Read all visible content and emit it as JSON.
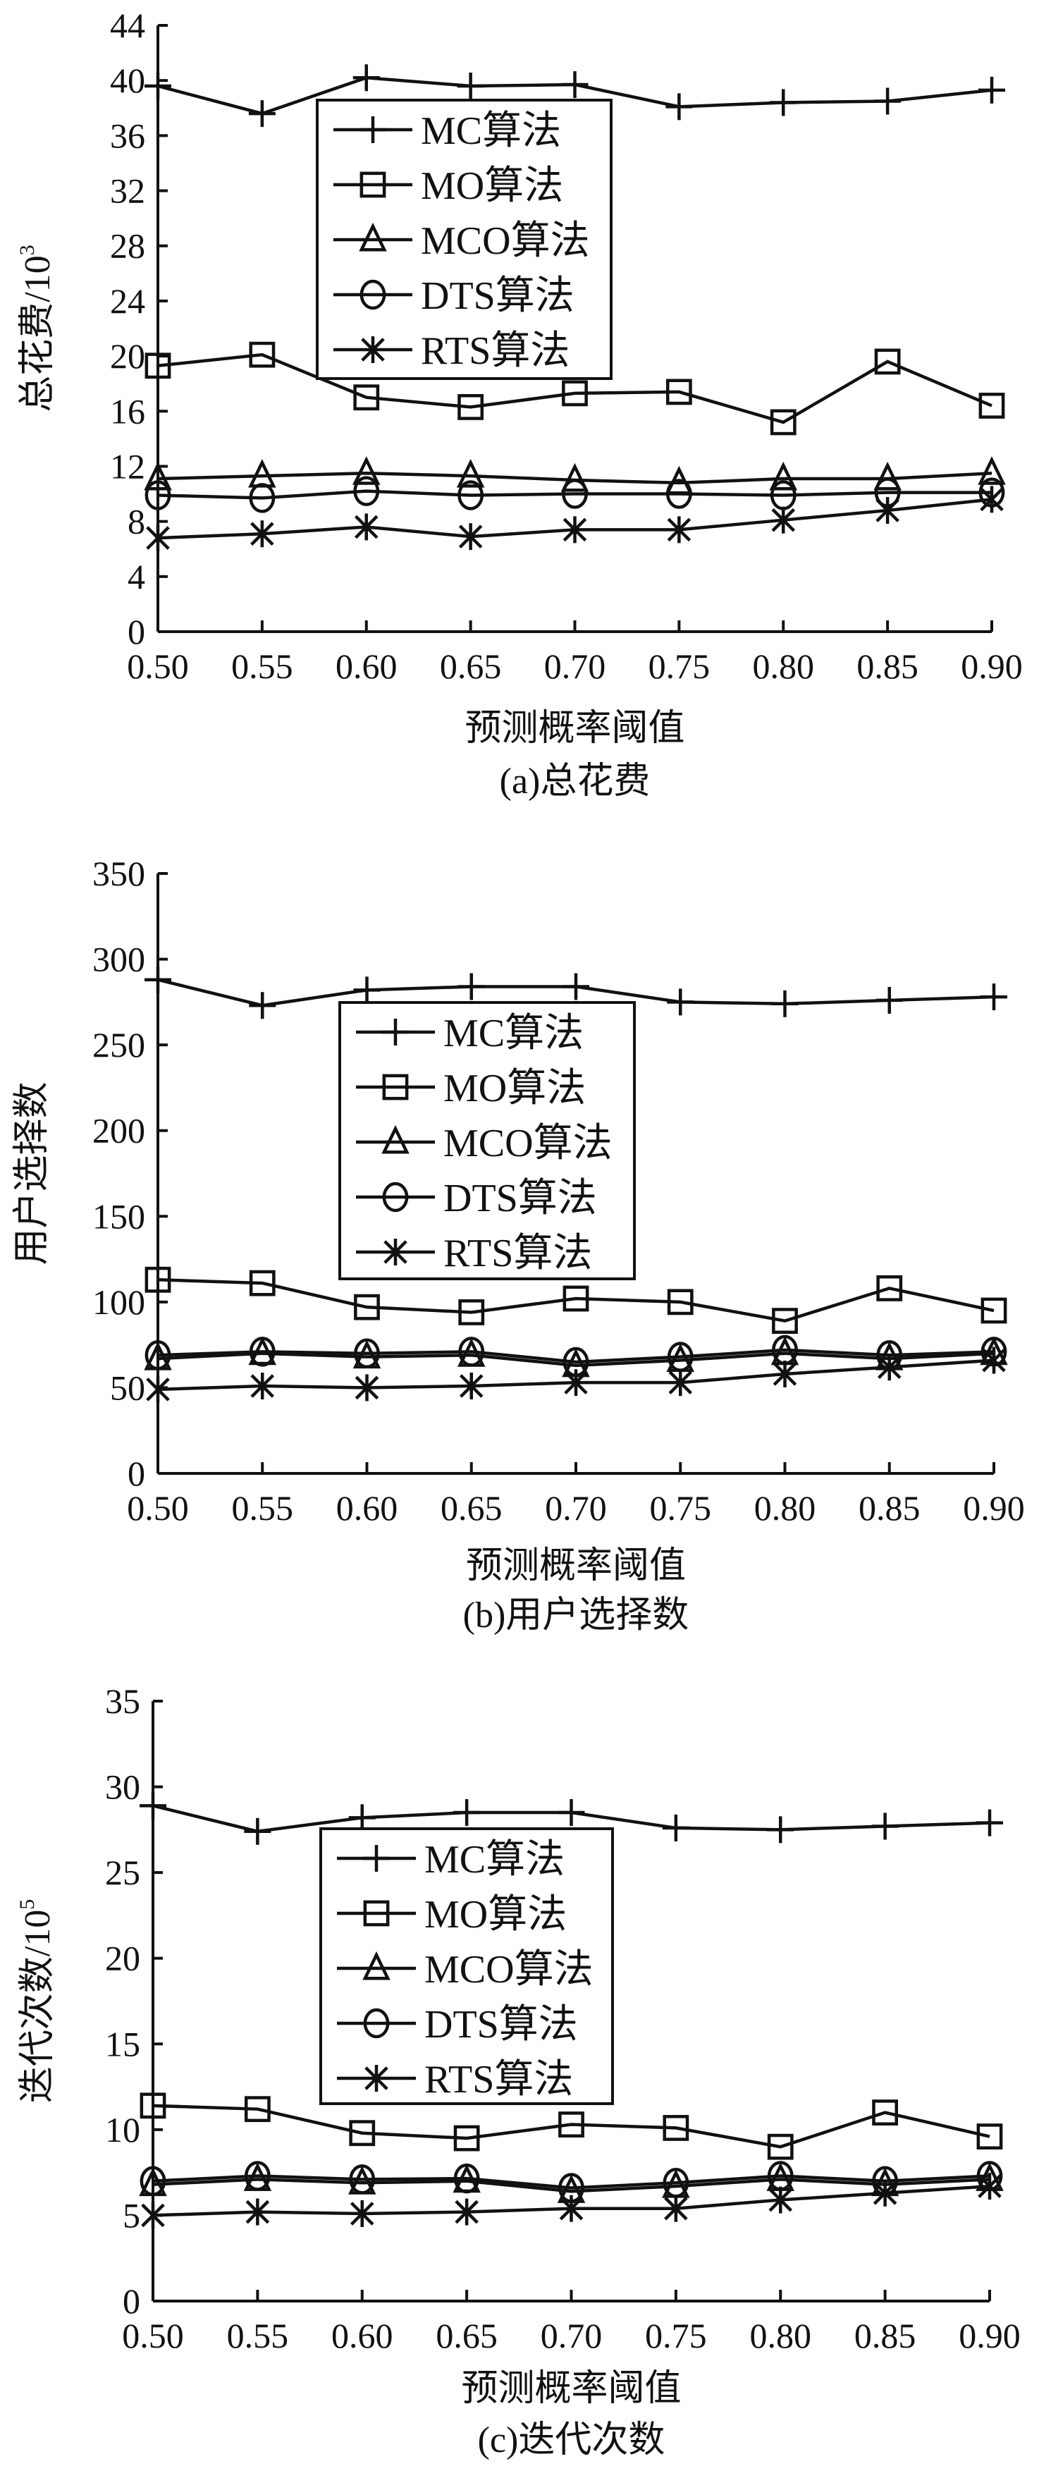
{
  "chart_data": [
    {
      "type": "line",
      "title": "(a)总花费",
      "xlabel": "预测概率阈值",
      "ylabel": "总花费/10",
      "ylabel_exponent": "3",
      "x": [
        0.5,
        0.55,
        0.6,
        0.65,
        0.7,
        0.75,
        0.8,
        0.85,
        0.9
      ],
      "x_tick_labels": [
        "0.50",
        "0.55",
        "0.60",
        "0.65",
        "0.70",
        "0.75",
        "0.80",
        "0.85",
        "0.90"
      ],
      "ylim": [
        0,
        44
      ],
      "y_ticks": [
        0,
        4,
        8,
        12,
        16,
        20,
        24,
        28,
        32,
        36,
        40,
        44
      ],
      "y_tick_labels": [
        "0",
        "4",
        "8",
        "12",
        "16",
        "20",
        "24",
        "28",
        "32",
        "36",
        "40",
        "44"
      ],
      "legend_position": "top-center",
      "series": [
        {
          "name": "MC算法",
          "marker": "plus",
          "values": [
            39.6,
            37.6,
            40.2,
            39.6,
            39.7,
            38.1,
            38.4,
            38.5,
            39.3
          ]
        },
        {
          "name": "MO算法",
          "marker": "square",
          "values": [
            19.3,
            20.1,
            17.0,
            16.3,
            17.3,
            17.4,
            15.2,
            19.6,
            16.4
          ]
        },
        {
          "name": "MCO算法",
          "marker": "triangle",
          "values": [
            11.1,
            11.3,
            11.5,
            11.3,
            11.0,
            10.8,
            11.1,
            11.1,
            11.5
          ]
        },
        {
          "name": "DTS算法",
          "marker": "circle",
          "values": [
            9.9,
            9.7,
            10.2,
            9.9,
            10.0,
            10.0,
            9.9,
            10.1,
            10.1
          ]
        },
        {
          "name": "RTS算法",
          "marker": "asterisk",
          "values": [
            6.8,
            7.1,
            7.6,
            6.9,
            7.4,
            7.4,
            8.1,
            8.8,
            9.6
          ]
        }
      ]
    },
    {
      "type": "line",
      "title": "(b)用户选择数",
      "xlabel": "预测概率阈值",
      "ylabel": "用户选择数",
      "ylabel_exponent": "",
      "x": [
        0.5,
        0.55,
        0.6,
        0.65,
        0.7,
        0.75,
        0.8,
        0.85,
        0.9
      ],
      "x_tick_labels": [
        "0.50",
        "0.55",
        "0.60",
        "0.65",
        "0.70",
        "0.75",
        "0.80",
        "0.85",
        "0.90"
      ],
      "ylim": [
        0,
        350
      ],
      "y_ticks": [
        0,
        50,
        100,
        150,
        200,
        250,
        300,
        350
      ],
      "y_tick_labels": [
        "0",
        "50",
        "100",
        "150",
        "200",
        "250",
        "300",
        "350"
      ],
      "legend_position": "center",
      "series": [
        {
          "name": "MC算法",
          "marker": "plus",
          "values": [
            288,
            273,
            282,
            284,
            284,
            275,
            274,
            276,
            278
          ]
        },
        {
          "name": "MO算法",
          "marker": "square",
          "values": [
            113,
            111,
            97,
            94,
            102,
            100,
            89,
            108,
            95
          ]
        },
        {
          "name": "MCO算法",
          "marker": "triangle",
          "values": [
            67,
            70,
            68,
            69,
            63,
            66,
            70,
            67,
            70
          ]
        },
        {
          "name": "DTS算法",
          "marker": "circle",
          "values": [
            69,
            71,
            70,
            71,
            65,
            68,
            72,
            69,
            71
          ]
        },
        {
          "name": "RTS算法",
          "marker": "asterisk",
          "values": [
            49,
            51,
            50,
            51,
            53,
            53,
            58,
            62,
            66
          ]
        }
      ]
    },
    {
      "type": "line",
      "title": "(c)迭代次数",
      "xlabel": "预测概率阈值",
      "ylabel": "迭代次数/10",
      "ylabel_exponent": "5",
      "x": [
        0.5,
        0.55,
        0.6,
        0.65,
        0.7,
        0.75,
        0.8,
        0.85,
        0.9
      ],
      "x_tick_labels": [
        "0.50",
        "0.55",
        "0.60",
        "0.65",
        "0.70",
        "0.75",
        "0.80",
        "0.85",
        "0.90"
      ],
      "ylim": [
        0,
        35
      ],
      "y_ticks": [
        0,
        5,
        10,
        15,
        20,
        25,
        30,
        35
      ],
      "y_tick_labels": [
        "0",
        "5",
        "10",
        "15",
        "20",
        "25",
        "30",
        "35"
      ],
      "legend_position": "center",
      "series": [
        {
          "name": "MC算法",
          "marker": "plus",
          "values": [
            28.9,
            27.4,
            28.2,
            28.5,
            28.5,
            27.6,
            27.5,
            27.7,
            27.9
          ]
        },
        {
          "name": "MO算法",
          "marker": "square",
          "values": [
            11.4,
            11.2,
            9.8,
            9.5,
            10.3,
            10.1,
            9.0,
            11.0,
            9.6
          ]
        },
        {
          "name": "MCO算法",
          "marker": "triangle",
          "values": [
            6.8,
            7.1,
            6.9,
            7.0,
            6.4,
            6.7,
            7.1,
            6.8,
            7.1
          ]
        },
        {
          "name": "DTS算法",
          "marker": "circle",
          "values": [
            7.0,
            7.3,
            7.1,
            7.15,
            6.6,
            6.9,
            7.3,
            7.0,
            7.3
          ]
        },
        {
          "name": "RTS算法",
          "marker": "asterisk",
          "values": [
            5.0,
            5.2,
            5.1,
            5.2,
            5.4,
            5.4,
            5.9,
            6.3,
            6.7
          ]
        }
      ]
    }
  ]
}
